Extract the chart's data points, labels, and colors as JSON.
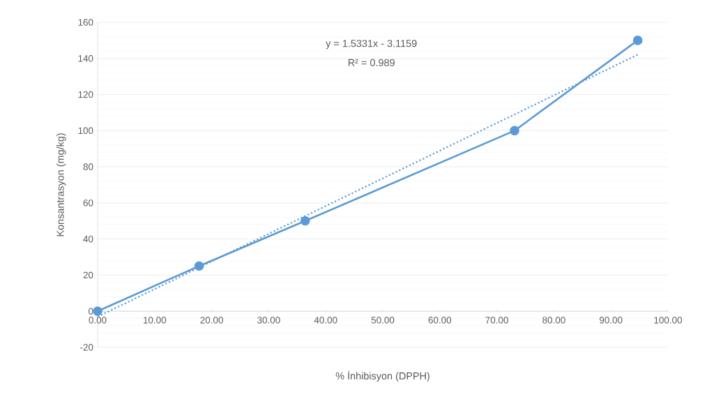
{
  "chart_data": {
    "type": "line",
    "xlabel": "% İnhibisyon (DPPH)",
    "ylabel": "Konsantrasyon (mg/kg)",
    "annotations": [
      "y = 1.5331x - 3.1159",
      "R² = 0.989"
    ],
    "xlim": [
      0,
      100
    ],
    "ylim": [
      -20,
      160
    ],
    "xticks": [
      {
        "value": 0,
        "label": "0.00"
      },
      {
        "value": 10,
        "label": "10.00"
      },
      {
        "value": 20,
        "label": "20.00"
      },
      {
        "value": 30,
        "label": "30.00"
      },
      {
        "value": 40,
        "label": "40.00"
      },
      {
        "value": 50,
        "label": "50.00"
      },
      {
        "value": 60,
        "label": "60.00"
      },
      {
        "value": 70,
        "label": "70.00"
      },
      {
        "value": 80,
        "label": "80.00"
      },
      {
        "value": 90,
        "label": "90.00"
      },
      {
        "value": 100,
        "label": "100.00"
      }
    ],
    "yticks": [
      -20,
      0,
      20,
      40,
      60,
      80,
      100,
      120,
      140,
      160
    ],
    "grid": "y",
    "series": [
      {
        "color": "#5b9bd5",
        "x": [
          0,
          17.8,
          36.4,
          73.1,
          94.7
        ],
        "values": [
          0,
          25,
          50,
          100,
          150
        ],
        "marker": "circle",
        "line_style": "solid"
      },
      {
        "color": "#5b9bd5",
        "x": [
          0,
          94.7
        ],
        "values": [
          -3.1,
          142.1
        ],
        "marker": "none",
        "line_style": "dotted"
      }
    ]
  }
}
